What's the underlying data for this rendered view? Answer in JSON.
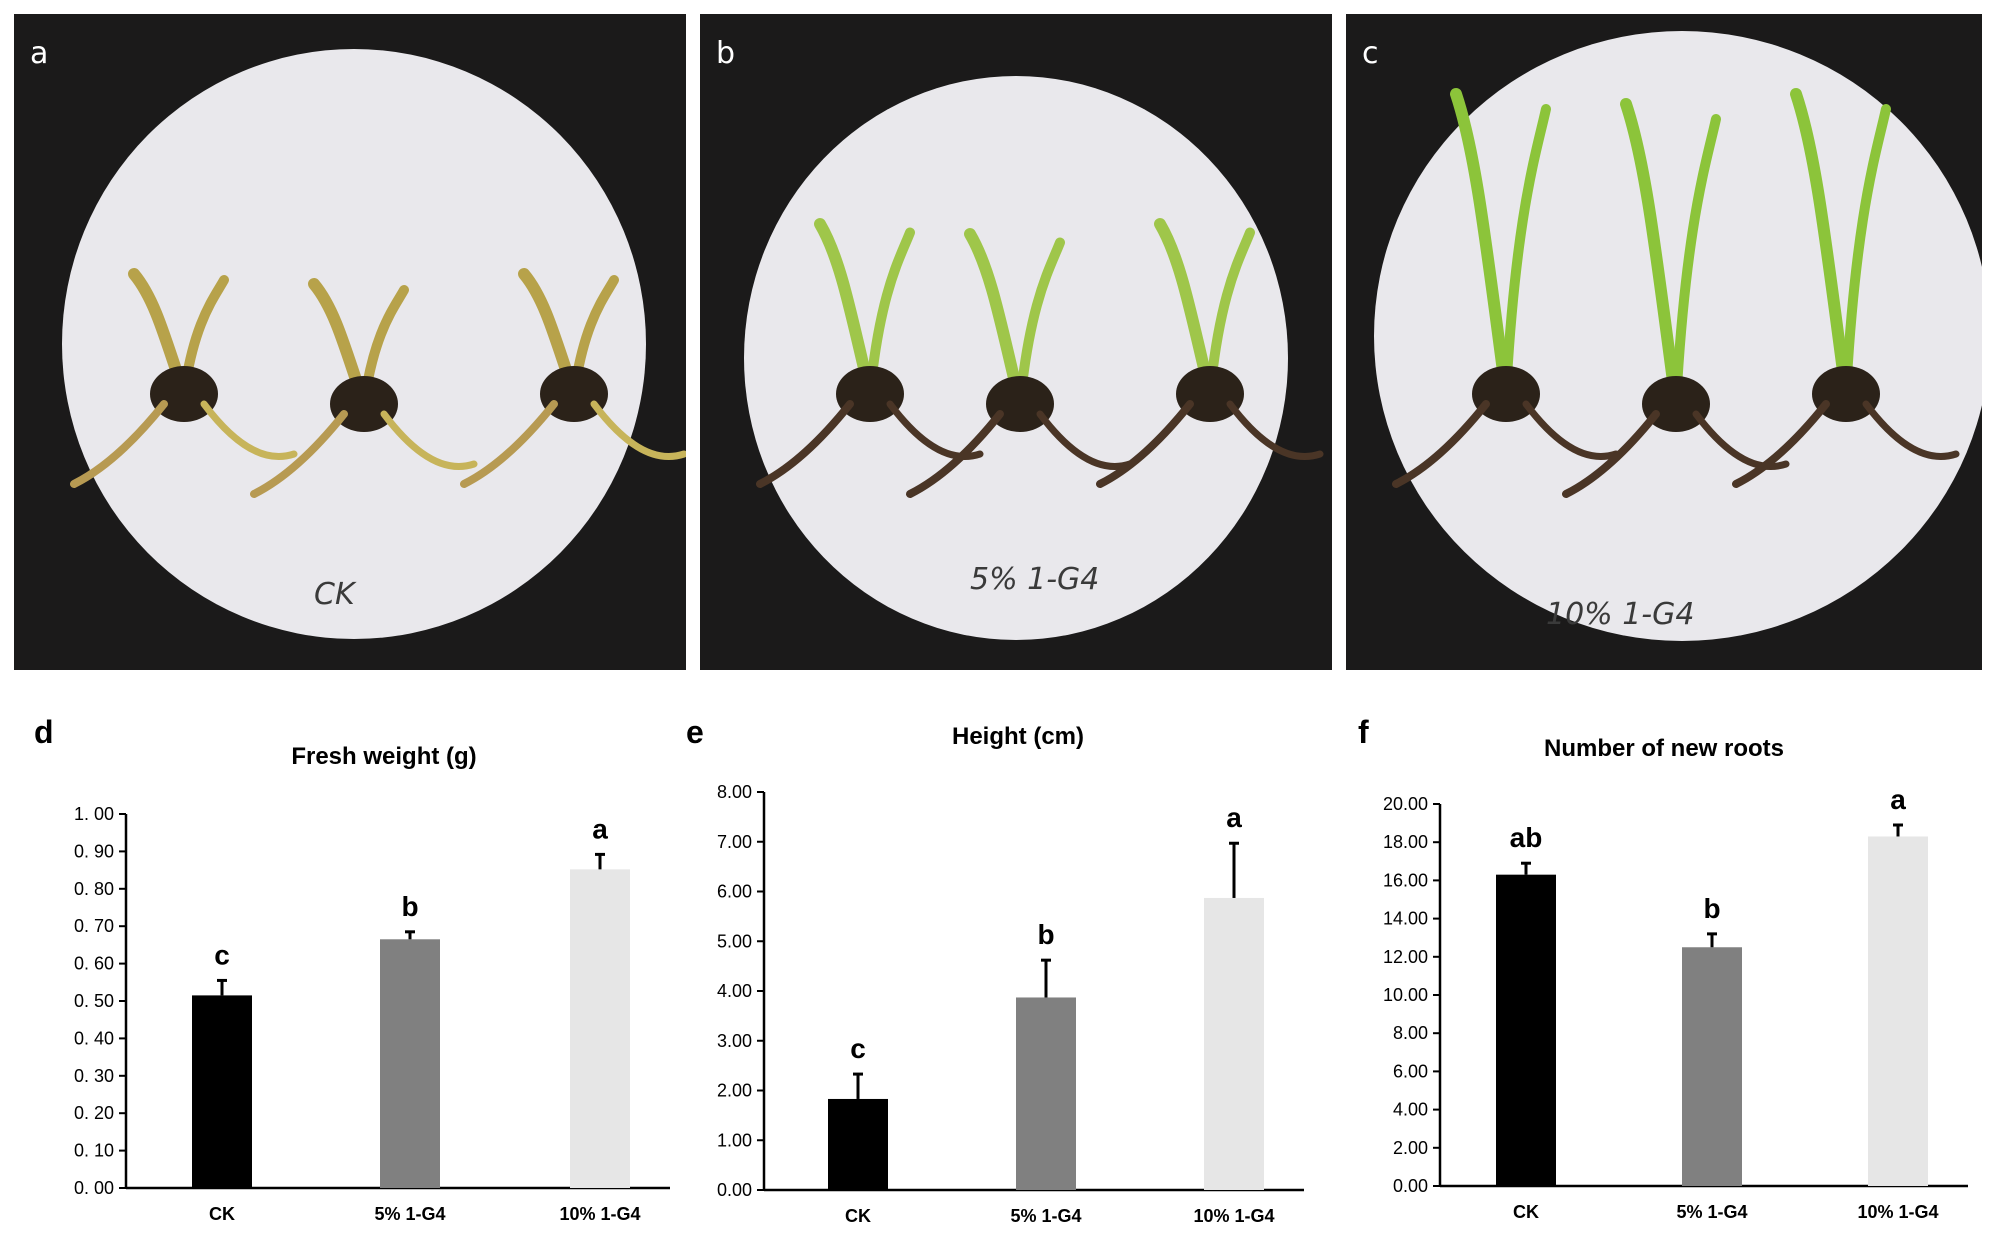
{
  "photos": [
    {
      "letter": "a",
      "label": "CK",
      "plant_color": "#b7a24a"
    },
    {
      "letter": "b",
      "label": "5% 1-G4",
      "plant_color": "#9fc64a"
    },
    {
      "letter": "c",
      "label": "10% 1-G4",
      "plant_color": "#8cc43a"
    }
  ],
  "colors": {
    "CK": "#000000",
    "5% 1-G4": "#808080",
    "10% 1-G4": "#e6e6e6"
  },
  "chart_data": [
    {
      "letter": "d",
      "type": "bar",
      "title": "Fresh weight (g)",
      "categories": [
        "CK",
        "5% 1-G4",
        "10% 1-G4"
      ],
      "values": [
        0.515,
        0.665,
        0.852
      ],
      "errors": [
        0.04,
        0.02,
        0.04
      ],
      "significance": [
        "c",
        "b",
        "a"
      ],
      "ylim": [
        0,
        1.0
      ],
      "yticks": [
        "0. 00",
        "0. 10",
        "0. 20",
        "0. 30",
        "0. 40",
        "0. 50",
        "0. 60",
        "0. 70",
        "0. 80",
        "0. 90",
        "1. 00"
      ],
      "grid": false
    },
    {
      "letter": "e",
      "type": "bar",
      "title": "Height (cm)",
      "categories": [
        "CK",
        "5% 1-G4",
        "10% 1-G4"
      ],
      "values": [
        1.83,
        3.87,
        5.87
      ],
      "errors": [
        0.5,
        0.75,
        1.1
      ],
      "significance": [
        "c",
        "b",
        "a"
      ],
      "ylim": [
        0,
        8.0
      ],
      "yticks": [
        "0.00",
        "1.00",
        "2.00",
        "3.00",
        "4.00",
        "5.00",
        "6.00",
        "7.00",
        "8.00"
      ],
      "grid": false
    },
    {
      "letter": "f",
      "type": "bar",
      "title": "Number of new roots",
      "categories": [
        "CK",
        "5% 1-G4",
        "10% 1-G4"
      ],
      "values": [
        16.3,
        12.5,
        18.3
      ],
      "errors": [
        0.6,
        0.7,
        0.6
      ],
      "significance": [
        "ab",
        "b",
        "a"
      ],
      "ylim": [
        0,
        20.0
      ],
      "yticks": [
        "0.00",
        "2.00",
        "4.00",
        "6.00",
        "8.00",
        "10.00",
        "12.00",
        "14.00",
        "16.00",
        "18.00",
        "20.00"
      ],
      "grid": false
    }
  ]
}
